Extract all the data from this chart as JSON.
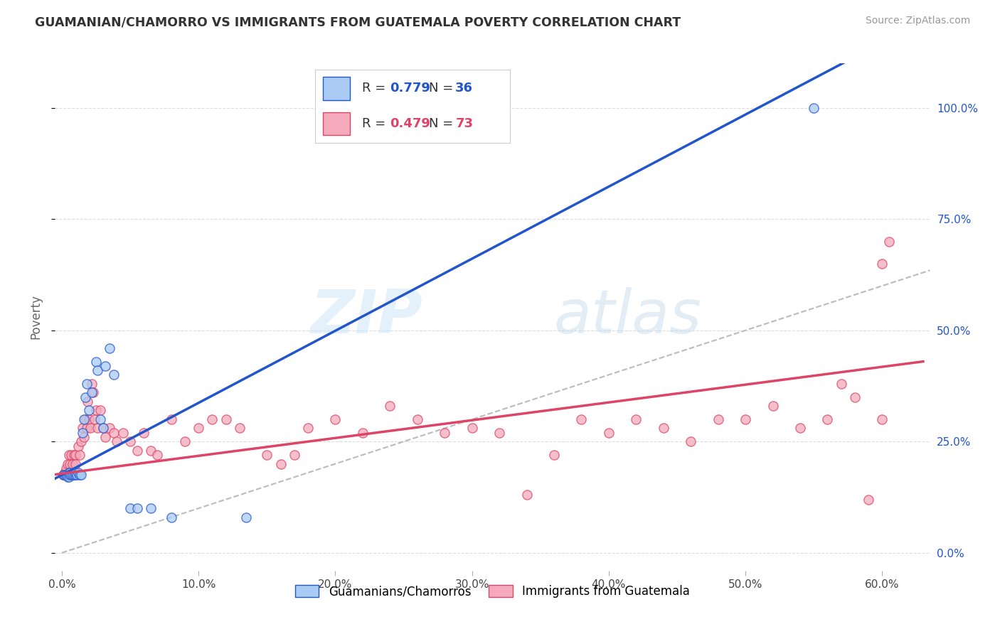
{
  "title": "GUAMANIAN/CHAMORRO VS IMMIGRANTS FROM GUATEMALA POVERTY CORRELATION CHART",
  "source": "Source: ZipAtlas.com",
  "ylabel": "Poverty",
  "xlabel_ticks": [
    "0.0%",
    "10.0%",
    "20.0%",
    "30.0%",
    "40.0%",
    "50.0%",
    "60.0%"
  ],
  "xlabel_vals": [
    0.0,
    0.1,
    0.2,
    0.3,
    0.4,
    0.5,
    0.6
  ],
  "ylabel_ticks": [
    "0.0%",
    "25.0%",
    "50.0%",
    "75.0%",
    "100.0%"
  ],
  "ylabel_vals": [
    0.0,
    0.25,
    0.5,
    0.75,
    1.0
  ],
  "xlim": [
    -0.005,
    0.635
  ],
  "ylim": [
    -0.04,
    1.1
  ],
  "blue_R": 0.779,
  "blue_N": 36,
  "pink_R": 0.479,
  "pink_N": 73,
  "blue_label": "Guamanians/Chamorros",
  "pink_label": "Immigrants from Guatemala",
  "blue_color": "#aaccf4",
  "pink_color": "#f4aabb",
  "blue_line_color": "#2255cc",
  "pink_line_color": "#dd4466",
  "blue_line_slope": 1.62,
  "blue_line_intercept": 0.175,
  "pink_line_slope": 0.4,
  "pink_line_intercept": 0.178,
  "dash_line": [
    [
      0.0,
      0.0
    ],
    [
      0.635,
      0.635
    ]
  ],
  "blue_scatter": [
    [
      0.001,
      0.175
    ],
    [
      0.002,
      0.175
    ],
    [
      0.003,
      0.175
    ],
    [
      0.004,
      0.17
    ],
    [
      0.005,
      0.17
    ],
    [
      0.005,
      0.18
    ],
    [
      0.006,
      0.18
    ],
    [
      0.006,
      0.175
    ],
    [
      0.007,
      0.175
    ],
    [
      0.008,
      0.175
    ],
    [
      0.009,
      0.175
    ],
    [
      0.01,
      0.175
    ],
    [
      0.01,
      0.18
    ],
    [
      0.011,
      0.175
    ],
    [
      0.012,
      0.18
    ],
    [
      0.013,
      0.175
    ],
    [
      0.014,
      0.175
    ],
    [
      0.015,
      0.27
    ],
    [
      0.016,
      0.3
    ],
    [
      0.017,
      0.35
    ],
    [
      0.018,
      0.38
    ],
    [
      0.02,
      0.32
    ],
    [
      0.022,
      0.36
    ],
    [
      0.025,
      0.43
    ],
    [
      0.026,
      0.41
    ],
    [
      0.028,
      0.3
    ],
    [
      0.03,
      0.28
    ],
    [
      0.032,
      0.42
    ],
    [
      0.035,
      0.46
    ],
    [
      0.038,
      0.4
    ],
    [
      0.05,
      0.1
    ],
    [
      0.055,
      0.1
    ],
    [
      0.065,
      0.1
    ],
    [
      0.08,
      0.08
    ],
    [
      0.135,
      0.08
    ],
    [
      0.55,
      1.0
    ]
  ],
  "pink_scatter": [
    [
      0.001,
      0.175
    ],
    [
      0.002,
      0.18
    ],
    [
      0.003,
      0.19
    ],
    [
      0.004,
      0.2
    ],
    [
      0.005,
      0.22
    ],
    [
      0.006,
      0.2
    ],
    [
      0.007,
      0.22
    ],
    [
      0.008,
      0.2
    ],
    [
      0.009,
      0.22
    ],
    [
      0.01,
      0.22
    ],
    [
      0.01,
      0.2
    ],
    [
      0.012,
      0.24
    ],
    [
      0.013,
      0.22
    ],
    [
      0.014,
      0.25
    ],
    [
      0.015,
      0.28
    ],
    [
      0.016,
      0.26
    ],
    [
      0.017,
      0.3
    ],
    [
      0.018,
      0.28
    ],
    [
      0.019,
      0.34
    ],
    [
      0.02,
      0.3
    ],
    [
      0.021,
      0.28
    ],
    [
      0.022,
      0.38
    ],
    [
      0.023,
      0.36
    ],
    [
      0.024,
      0.3
    ],
    [
      0.025,
      0.32
    ],
    [
      0.026,
      0.28
    ],
    [
      0.028,
      0.32
    ],
    [
      0.03,
      0.28
    ],
    [
      0.032,
      0.26
    ],
    [
      0.035,
      0.28
    ],
    [
      0.038,
      0.27
    ],
    [
      0.04,
      0.25
    ],
    [
      0.045,
      0.27
    ],
    [
      0.05,
      0.25
    ],
    [
      0.055,
      0.23
    ],
    [
      0.06,
      0.27
    ],
    [
      0.065,
      0.23
    ],
    [
      0.07,
      0.22
    ],
    [
      0.08,
      0.3
    ],
    [
      0.09,
      0.25
    ],
    [
      0.1,
      0.28
    ],
    [
      0.11,
      0.3
    ],
    [
      0.12,
      0.3
    ],
    [
      0.13,
      0.28
    ],
    [
      0.15,
      0.22
    ],
    [
      0.16,
      0.2
    ],
    [
      0.17,
      0.22
    ],
    [
      0.18,
      0.28
    ],
    [
      0.2,
      0.3
    ],
    [
      0.22,
      0.27
    ],
    [
      0.24,
      0.33
    ],
    [
      0.26,
      0.3
    ],
    [
      0.28,
      0.27
    ],
    [
      0.3,
      0.28
    ],
    [
      0.32,
      0.27
    ],
    [
      0.34,
      0.13
    ],
    [
      0.36,
      0.22
    ],
    [
      0.38,
      0.3
    ],
    [
      0.4,
      0.27
    ],
    [
      0.42,
      0.3
    ],
    [
      0.44,
      0.28
    ],
    [
      0.46,
      0.25
    ],
    [
      0.48,
      0.3
    ],
    [
      0.5,
      0.3
    ],
    [
      0.52,
      0.33
    ],
    [
      0.54,
      0.28
    ],
    [
      0.56,
      0.3
    ],
    [
      0.57,
      0.38
    ],
    [
      0.58,
      0.35
    ],
    [
      0.59,
      0.12
    ],
    [
      0.6,
      0.3
    ],
    [
      0.6,
      0.65
    ],
    [
      0.605,
      0.7
    ]
  ],
  "watermark_zip": "ZIP",
  "watermark_atlas": "atlas",
  "background_color": "#ffffff",
  "grid_color": "#dddddd"
}
